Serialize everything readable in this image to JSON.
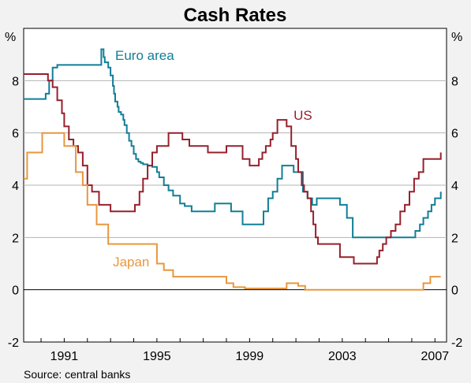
{
  "chart_data": {
    "type": "line",
    "title": "Cash Rates",
    "y_unit_left": "%",
    "y_unit_right": "%",
    "ylim": [
      -2,
      10
    ],
    "y_ticks": [
      -2,
      0,
      2,
      4,
      6,
      8
    ],
    "xlim": [
      1989.25,
      2007.5
    ],
    "x_ticks": [
      1991,
      1995,
      1999,
      2003,
      2007
    ],
    "grid": true,
    "source": "Source: central banks",
    "series": [
      {
        "name": "Euro area",
        "color": "#117e97",
        "label_at": [
          1993.2,
          8.8
        ],
        "x": [
          1989.25,
          1990.2,
          1990.2,
          1990.35,
          1990.5,
          1990.7,
          1991.2,
          1992.0,
          1992.55,
          1992.6,
          1992.7,
          1992.75,
          1992.9,
          1993.0,
          1993.1,
          1993.15,
          1993.2,
          1993.3,
          1993.35,
          1993.45,
          1993.55,
          1993.6,
          1993.7,
          1993.8,
          1993.9,
          1994.0,
          1994.1,
          1994.2,
          1994.3,
          1994.4,
          1994.6,
          1994.8,
          1995.0,
          1995.1,
          1995.3,
          1995.5,
          1995.7,
          1996.0,
          1996.2,
          1996.4,
          1996.5,
          1997.0,
          1997.5,
          1998.0,
          1998.2,
          1998.5,
          1998.7,
          1999.2,
          1999.6,
          1999.8,
          2000.0,
          2000.2,
          2000.4,
          2000.6,
          2000.9,
          2001.3,
          2001.5,
          2001.7,
          2001.9,
          2002.9,
          2003.2,
          2003.45,
          2005.9,
          2006.15,
          2006.35,
          2006.5,
          2006.7,
          2006.85,
          2007.0,
          2007.25
        ],
        "values": [
          7.3,
          7.3,
          7.5,
          8.0,
          8.5,
          8.6,
          8.6,
          8.6,
          8.6,
          9.2,
          8.9,
          8.7,
          8.5,
          8.2,
          7.8,
          7.5,
          7.2,
          7.0,
          6.8,
          6.7,
          6.5,
          6.3,
          6.0,
          5.7,
          5.5,
          5.2,
          5.0,
          4.9,
          4.85,
          4.8,
          4.75,
          4.7,
          4.5,
          4.3,
          4.0,
          3.8,
          3.6,
          3.3,
          3.2,
          3.2,
          3.0,
          3.0,
          3.3,
          3.3,
          3.0,
          3.0,
          2.5,
          2.5,
          3.0,
          3.5,
          3.75,
          4.25,
          4.75,
          4.75,
          4.5,
          3.75,
          3.5,
          3.25,
          3.5,
          3.25,
          2.75,
          2.0,
          2.0,
          2.25,
          2.5,
          2.75,
          3.0,
          3.25,
          3.5,
          3.75
        ]
      },
      {
        "name": "US",
        "color": "#96202c",
        "label_at": [
          2000.9,
          6.5
        ],
        "x": [
          1989.25,
          1990.0,
          1990.3,
          1990.5,
          1990.7,
          1990.9,
          1991.0,
          1991.2,
          1991.4,
          1991.6,
          1991.8,
          1992.0,
          1992.2,
          1992.5,
          1993.0,
          1993.5,
          1993.9,
          1994.05,
          1994.25,
          1994.4,
          1994.6,
          1994.8,
          1995.0,
          1995.5,
          1995.9,
          1996.1,
          1996.4,
          1997.2,
          1998.0,
          1998.4,
          1998.7,
          1999.0,
          1999.4,
          1999.55,
          1999.7,
          1999.9,
          2000.0,
          2000.2,
          2000.4,
          2000.6,
          2000.8,
          2001.0,
          2001.1,
          2001.25,
          2001.35,
          2001.5,
          2001.65,
          2001.75,
          2001.85,
          2001.95,
          2002.9,
          2003.5,
          2004.5,
          2004.6,
          2004.75,
          2004.9,
          2005.1,
          2005.3,
          2005.5,
          2005.7,
          2005.9,
          2006.1,
          2006.3,
          2006.5,
          2007.25
        ],
        "values": [
          8.25,
          8.25,
          8.0,
          7.75,
          7.25,
          6.75,
          6.25,
          5.75,
          5.5,
          5.25,
          4.75,
          4.0,
          3.75,
          3.25,
          3.0,
          3.0,
          3.0,
          3.25,
          3.75,
          4.25,
          4.75,
          5.25,
          5.5,
          6.0,
          6.0,
          5.75,
          5.5,
          5.25,
          5.5,
          5.5,
          5.0,
          4.75,
          5.0,
          5.25,
          5.5,
          5.75,
          6.0,
          6.5,
          6.5,
          6.25,
          5.5,
          5.0,
          4.5,
          4.0,
          3.75,
          3.5,
          3.0,
          2.5,
          2.0,
          1.75,
          1.25,
          1.0,
          1.25,
          1.5,
          1.75,
          2.0,
          2.25,
          2.5,
          3.0,
          3.25,
          3.75,
          4.25,
          4.5,
          5.0,
          5.25
        ]
      },
      {
        "name": "Japan",
        "color": "#e8973f",
        "label_at": [
          1993.1,
          0.9
        ],
        "x": [
          1989.25,
          1989.4,
          1990.05,
          1990.5,
          1991.0,
          1991.5,
          1991.8,
          1992.0,
          1992.4,
          1992.9,
          1993.3,
          1993.8,
          1994.2,
          1995.0,
          1995.3,
          1995.7,
          1996.2,
          1997.0,
          1998.0,
          1998.3,
          1998.8,
          1999.2,
          2000.6,
          2001.1,
          2001.4,
          2006.5,
          2006.8,
          2007.25
        ],
        "values": [
          4.25,
          5.25,
          6.0,
          6.0,
          5.5,
          4.5,
          4.0,
          3.25,
          2.5,
          1.75,
          1.75,
          1.75,
          1.75,
          1.0,
          0.75,
          0.5,
          0.5,
          0.5,
          0.25,
          0.1,
          0.05,
          0.05,
          0.25,
          0.15,
          0.0,
          0.25,
          0.5,
          0.5
        ]
      }
    ]
  }
}
